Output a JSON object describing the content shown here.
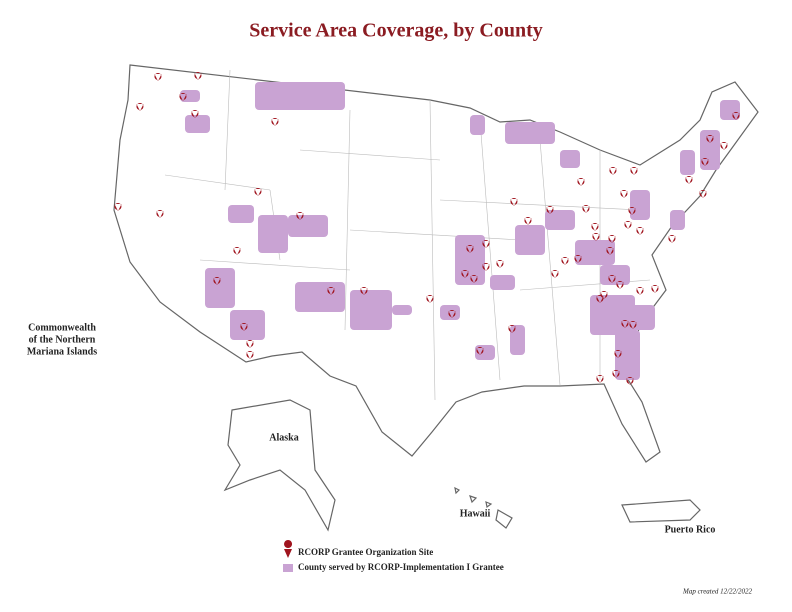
{
  "title": "Service Area Coverage, by County",
  "labels": {
    "mariana": [
      "Commonwealth",
      "of the Northern",
      "Mariana Islands"
    ],
    "alaska": "Alaska",
    "hawaii": "Hawaii",
    "puerto_rico": "Puerto Rico"
  },
  "legend": [
    "RCORP Grantee Organization Site",
    "County served by RCORP-Implementation I Grantee"
  ],
  "note": "Map created 12/22/2022"
}
